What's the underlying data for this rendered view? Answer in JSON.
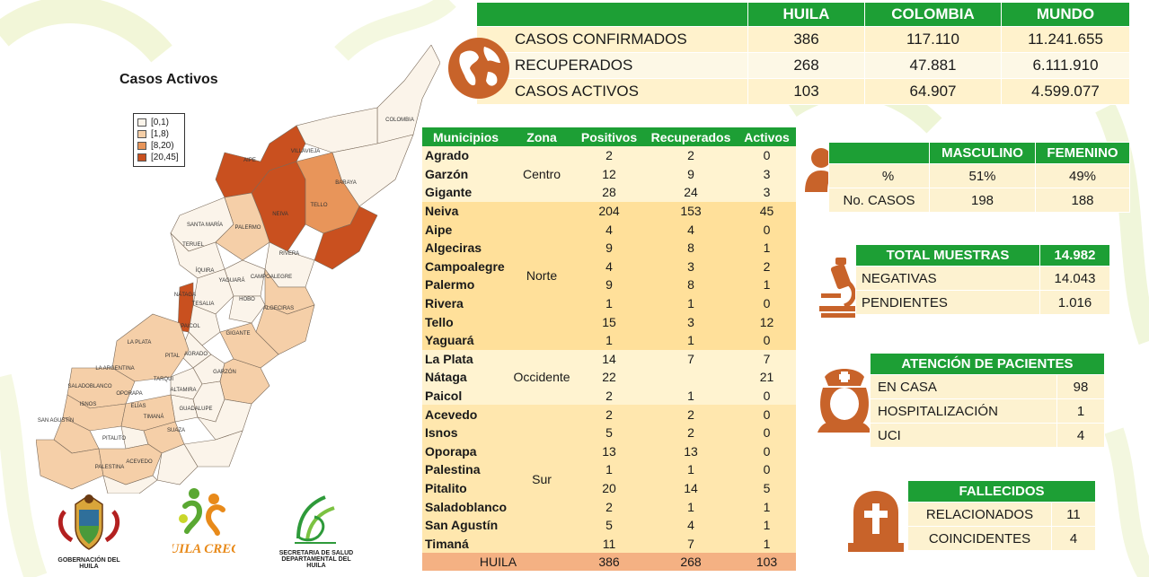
{
  "summary": {
    "headers": [
      "",
      "HUILA",
      "COLOMBIA",
      "MUNDO"
    ],
    "rows": [
      {
        "label": "CASOS CONFIRMADOS",
        "huila": "386",
        "colombia": "117.110",
        "mundo": "11.241.655"
      },
      {
        "label": "RECUPERADOS",
        "huila": "268",
        "colombia": "47.881",
        "mundo": "6.111.910"
      },
      {
        "label": "CASOS ACTIVOS",
        "huila": "103",
        "colombia": "64.907",
        "mundo": "4.599.077"
      }
    ]
  },
  "map": {
    "title": "Casos Activos",
    "legend": [
      {
        "label": "[0,1)",
        "color": "#fbf4ea"
      },
      {
        "label": "[1,8)",
        "color": "#f5cfa8"
      },
      {
        "label": "[8,20)",
        "color": "#e8955a"
      },
      {
        "label": "[20,45]",
        "color": "#c9501f"
      }
    ],
    "municipality_labels": [
      "COLOMBIA",
      "VILLAVIEJA",
      "BARAYA",
      "TELLO",
      "NEIVA",
      "AIPE",
      "SANTA MARÍA",
      "PALERMO",
      "TERUEL",
      "RIVERA",
      "ÍQUIRA",
      "YAGUARÁ",
      "CAMPOALEGRE",
      "NÁTAGA",
      "TESALIA",
      "HOBO",
      "ALGECIRAS",
      "PAICOL",
      "GIGANTE",
      "LA PLATA",
      "AGRADO",
      "PITAL",
      "GARZÓN",
      "LA ARGENTINA",
      "TARQUI",
      "ALTAMIRA",
      "SALADOBLANCO",
      "OPORAPA",
      "ISNOS",
      "ELÍAS",
      "TIMANÁ",
      "GUADALUPE",
      "SAN AGUSTÍN",
      "SUAZA",
      "PITALITO",
      "ACEVEDO",
      "PALESTINA"
    ]
  },
  "municipios": {
    "headers": [
      "Municipios",
      "Zona",
      "Positivos",
      "Recuperados",
      "Activos"
    ],
    "groups": [
      {
        "zona": "Centro",
        "rows": [
          {
            "name": "Agrado",
            "pos": "2",
            "rec": "2",
            "act": "0"
          },
          {
            "name": "Garzón",
            "pos": "12",
            "rec": "9",
            "act": "3"
          },
          {
            "name": "Gigante",
            "pos": "28",
            "rec": "24",
            "act": "3"
          }
        ]
      },
      {
        "zona": "Norte",
        "rows": [
          {
            "name": "Neiva",
            "pos": "204",
            "rec": "153",
            "act": "45"
          },
          {
            "name": "Aipe",
            "pos": "4",
            "rec": "4",
            "act": "0"
          },
          {
            "name": "Algeciras",
            "pos": "9",
            "rec": "8",
            "act": "1"
          },
          {
            "name": "Campoalegre",
            "pos": "4",
            "rec": "3",
            "act": "2"
          },
          {
            "name": "Palermo",
            "pos": "9",
            "rec": "8",
            "act": "1"
          },
          {
            "name": "Rivera",
            "pos": "1",
            "rec": "1",
            "act": "0"
          },
          {
            "name": "Tello",
            "pos": "15",
            "rec": "3",
            "act": "12"
          },
          {
            "name": "Yaguará",
            "pos": "1",
            "rec": "1",
            "act": "0"
          }
        ]
      },
      {
        "zona": "Occidente",
        "rows": [
          {
            "name": "La Plata",
            "pos": "14",
            "rec": "7",
            "act": "7"
          },
          {
            "name": "Nátaga",
            "pos": "22",
            "rec": "",
            "act": "21"
          },
          {
            "name": "Paicol",
            "pos": "2",
            "rec": "1",
            "act": "0"
          }
        ]
      },
      {
        "zona": "Sur",
        "rows": [
          {
            "name": "Acevedo",
            "pos": "2",
            "rec": "2",
            "act": "0"
          },
          {
            "name": "Isnos",
            "pos": "5",
            "rec": "2",
            "act": "0"
          },
          {
            "name": "Oporapa",
            "pos": "13",
            "rec": "13",
            "act": "0"
          },
          {
            "name": "Palestina",
            "pos": "1",
            "rec": "1",
            "act": "0"
          },
          {
            "name": "Pitalito",
            "pos": "20",
            "rec": "14",
            "act": "5"
          },
          {
            "name": "Saladoblanco",
            "pos": "2",
            "rec": "1",
            "act": "1"
          },
          {
            "name": "San Agustín",
            "pos": "5",
            "rec": "4",
            "act": "1"
          },
          {
            "name": "Timaná",
            "pos": "11",
            "rec": "7",
            "act": "1"
          }
        ]
      }
    ],
    "total": {
      "name": "HUILA",
      "pos": "386",
      "rec": "268",
      "act": "103"
    }
  },
  "gender": {
    "headers": [
      "",
      "MASCULINO",
      "FEMENINO"
    ],
    "rows": [
      {
        "label": "%",
        "m": "51%",
        "f": "49%"
      },
      {
        "label": "No. CASOS",
        "m": "198",
        "f": "188"
      }
    ]
  },
  "muestras": {
    "title": "TOTAL MUESTRAS",
    "total": "14.982",
    "rows": [
      {
        "label": "NEGATIVAS",
        "value": "14.043"
      },
      {
        "label": "PENDIENTES",
        "value": "1.016"
      }
    ]
  },
  "atencion": {
    "title": "ATENCIÓN  DE PACIENTES",
    "rows": [
      {
        "label": "EN CASA",
        "value": "98"
      },
      {
        "label": "HOSPITALIZACIÓN",
        "value": "1"
      },
      {
        "label": "UCI",
        "value": "4"
      }
    ]
  },
  "fallecidos": {
    "title": "FALLECIDOS",
    "rows": [
      {
        "label": "RELACIONADOS",
        "value": "11"
      },
      {
        "label": "COINCIDENTES",
        "value": "4"
      }
    ]
  },
  "logos": {
    "gobernacion": "GOBERNACIÓN DEL HUILA",
    "huila_crece": "HUILA CRECE",
    "secretaria_line1": "SECRETARIA DE SALUD",
    "secretaria_line2": "DEPARTAMENTAL DEL HUILA"
  },
  "colors": {
    "header_green": "#1d9f35",
    "icon_orange": "#c8632a",
    "row_cream": "#fff2cc",
    "total_row": "#f4b183"
  }
}
